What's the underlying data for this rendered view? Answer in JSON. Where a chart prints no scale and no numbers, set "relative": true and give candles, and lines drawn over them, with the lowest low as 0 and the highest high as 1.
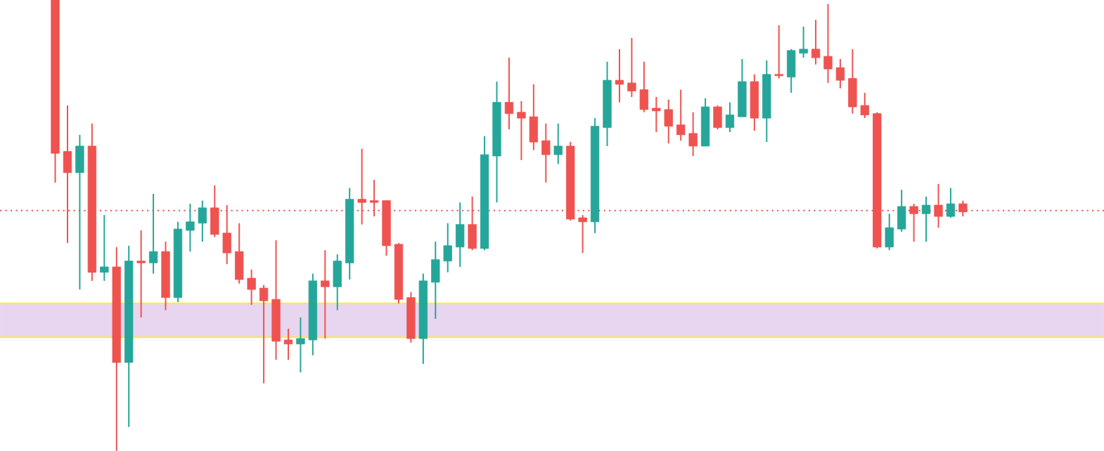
{
  "chart_data": {
    "type": "candlestick",
    "relative": true,
    "categories": [
      null,
      null,
      null,
      null,
      null,
      null,
      null,
      null,
      null,
      null,
      null,
      null,
      null,
      null,
      null,
      null,
      null,
      null,
      null,
      null,
      null,
      null,
      null,
      null,
      null,
      null,
      null,
      null,
      null,
      null,
      null,
      null,
      null,
      null,
      null,
      null,
      null,
      null,
      null,
      null,
      null,
      null,
      null,
      null,
      null,
      null,
      null,
      null,
      null,
      null,
      null,
      null,
      null,
      null,
      null,
      null,
      null,
      null,
      null,
      null,
      null,
      null,
      null,
      null,
      null,
      null,
      null,
      null,
      null,
      null,
      null,
      null,
      null,
      null,
      null,
      null,
      null,
      null,
      null,
      null,
      null,
      null,
      null,
      null,
      null,
      null,
      null,
      null,
      null,
      null
    ],
    "ohlc": [
      null,
      null,
      null,
      null,
      [
        1.0,
        1.0,
        0.595,
        0.66
      ],
      [
        0.664,
        0.766,
        0.461,
        0.617
      ],
      [
        0.617,
        0.701,
        0.358,
        0.676
      ],
      [
        0.676,
        0.726,
        0.377,
        0.396
      ],
      [
        0.396,
        0.523,
        0.377,
        0.408
      ],
      [
        0.408,
        0.452,
        0.0,
        0.196
      ],
      [
        0.196,
        0.455,
        0.053,
        0.421
      ],
      [
        0.421,
        0.489,
        0.296,
        0.417
      ],
      [
        0.417,
        0.57,
        0.393,
        0.442
      ],
      [
        0.442,
        0.464,
        0.312,
        0.34
      ],
      [
        0.34,
        0.508,
        0.33,
        0.492
      ],
      [
        0.489,
        0.548,
        0.442,
        0.508
      ],
      [
        0.505,
        0.555,
        0.464,
        0.539
      ],
      [
        0.539,
        0.589,
        0.474,
        0.48
      ],
      [
        0.483,
        0.545,
        0.414,
        0.439
      ],
      [
        0.442,
        0.505,
        0.371,
        0.38
      ],
      [
        0.383,
        0.402,
        0.324,
        0.358
      ],
      [
        0.361,
        0.368,
        0.15,
        0.333
      ],
      [
        0.336,
        0.467,
        0.202,
        0.243
      ],
      [
        0.246,
        0.271,
        0.202,
        0.237
      ],
      [
        0.237,
        0.296,
        0.174,
        0.249
      ],
      [
        0.246,
        0.393,
        0.212,
        0.377
      ],
      [
        0.377,
        0.445,
        0.249,
        0.364
      ],
      [
        0.364,
        0.436,
        0.312,
        0.421
      ],
      [
        0.417,
        0.583,
        0.38,
        0.558
      ],
      [
        0.558,
        0.67,
        0.502,
        0.551
      ],
      [
        0.555,
        0.601,
        0.52,
        0.551
      ],
      [
        0.555,
        0.555,
        0.433,
        0.455
      ],
      [
        0.458,
        0.461,
        0.327,
        0.336
      ],
      [
        0.34,
        0.352,
        0.24,
        0.249
      ],
      [
        0.249,
        0.393,
        0.193,
        0.377
      ],
      [
        0.374,
        0.464,
        0.293,
        0.424
      ],
      [
        0.421,
        0.505,
        0.396,
        0.455
      ],
      [
        0.452,
        0.551,
        0.408,
        0.502
      ],
      [
        0.502,
        0.564,
        0.445,
        0.449
      ],
      [
        0.449,
        0.698,
        0.445,
        0.657
      ],
      [
        0.654,
        0.819,
        0.551,
        0.773
      ],
      [
        0.773,
        0.872,
        0.713,
        0.748
      ],
      [
        0.751,
        0.776,
        0.645,
        0.738
      ],
      [
        0.741,
        0.813,
        0.667,
        0.685
      ],
      [
        0.688,
        0.726,
        0.595,
        0.657
      ],
      [
        0.657,
        0.726,
        0.636,
        0.676
      ],
      [
        0.676,
        0.685,
        0.511,
        0.514
      ],
      [
        0.517,
        0.523,
        0.439,
        0.508
      ],
      [
        0.508,
        0.738,
        0.483,
        0.72
      ],
      [
        0.717,
        0.863,
        0.676,
        0.822
      ],
      [
        0.822,
        0.891,
        0.773,
        0.813
      ],
      [
        0.816,
        0.916,
        0.785,
        0.798
      ],
      [
        0.801,
        0.863,
        0.751,
        0.757
      ],
      [
        0.76,
        0.785,
        0.707,
        0.754
      ],
      [
        0.757,
        0.779,
        0.682,
        0.72
      ],
      [
        0.723,
        0.801,
        0.688,
        0.701
      ],
      [
        0.704,
        0.751,
        0.654,
        0.676
      ],
      [
        0.676,
        0.782,
        0.676,
        0.763
      ],
      [
        0.763,
        0.766,
        0.713,
        0.717
      ],
      [
        0.717,
        0.773,
        0.707,
        0.745
      ],
      [
        0.741,
        0.869,
        0.741,
        0.819
      ],
      [
        0.819,
        0.835,
        0.71,
        0.738
      ],
      [
        0.738,
        0.866,
        0.685,
        0.835
      ],
      [
        0.835,
        0.944,
        0.826,
        0.832
      ],
      [
        0.829,
        0.891,
        0.794,
        0.888
      ],
      [
        0.882,
        0.941,
        0.872,
        0.891
      ],
      [
        0.891,
        0.956,
        0.857,
        0.872
      ],
      [
        0.875,
        0.991,
        0.816,
        0.847
      ],
      [
        0.85,
        0.869,
        0.804,
        0.822
      ],
      [
        0.826,
        0.891,
        0.748,
        0.763
      ],
      [
        0.766,
        0.794,
        0.738,
        0.745
      ],
      [
        0.748,
        0.751,
        0.449,
        0.452
      ],
      [
        0.452,
        0.526,
        0.445,
        0.495
      ],
      [
        0.492,
        0.579,
        0.486,
        0.542
      ],
      [
        0.542,
        0.548,
        0.464,
        0.526
      ],
      [
        0.526,
        0.564,
        0.464,
        0.545
      ],
      [
        0.545,
        0.592,
        0.495,
        0.52
      ],
      [
        0.52,
        0.583,
        0.517,
        0.548
      ],
      [
        0.548,
        0.555,
        0.52,
        0.53
      ],
      null,
      null,
      null,
      null,
      null,
      null,
      null,
      null,
      null,
      null,
      null
    ],
    "colors": [
      null,
      null,
      null,
      null,
      "#ef5350",
      "#ef5350",
      "#26a69a",
      "#ef5350",
      "#26a69a",
      "#ef5350",
      "#26a69a",
      "#ef5350",
      "#26a69a",
      "#ef5350",
      "#26a69a",
      "#26a69a",
      "#26a69a",
      "#ef5350",
      "#ef5350",
      "#ef5350",
      "#ef5350",
      "#ef5350",
      "#ef5350",
      "#ef5350",
      "#26a69a",
      "#26a69a",
      "#ef5350",
      "#26a69a",
      "#26a69a",
      "#ef5350",
      "#ef5350",
      "#ef5350",
      "#ef5350",
      "#ef5350",
      "#26a69a",
      "#26a69a",
      "#26a69a",
      "#26a69a",
      "#ef5350",
      "#26a69a",
      "#26a69a",
      "#ef5350",
      "#ef5350",
      "#ef5350",
      "#ef5350",
      "#26a69a",
      "#ef5350",
      "#ef5350",
      "#26a69a",
      "#26a69a",
      "#ef5350",
      "#ef5350",
      "#ef5350",
      "#ef5350",
      "#ef5350",
      "#ef5350",
      "#ef5350",
      "#26a69a",
      "#ef5350",
      "#26a69a",
      "#26a69a",
      "#ef5350",
      "#26a69a",
      "#ef5350",
      "#26a69a",
      "#26a69a",
      "#ef5350",
      "#ef5350",
      "#ef5350",
      "#ef5350",
      "#ef5350",
      "#ef5350",
      "#26a69a",
      "#26a69a",
      "#ef5350",
      "#26a69a",
      "#ef5350",
      "#26a69a",
      "#ef5350",
      null,
      null,
      null,
      null,
      null,
      null,
      null,
      null,
      null,
      null,
      null
    ],
    "bands": [
      {
        "axis": "y",
        "from": 0.252,
        "to": 0.327,
        "color": "#e8d5ef"
      }
    ],
    "ref_lines": [
      {
        "axis": "y",
        "value": 0.533,
        "color": "#ef5350",
        "line_style": "dotted"
      },
      {
        "axis": "y",
        "value": 0.252,
        "color": "#ffeb3b",
        "line_style": "solid"
      },
      {
        "axis": "y",
        "value": 0.327,
        "color": "#ffeb3b",
        "line_style": "solid"
      }
    ]
  }
}
